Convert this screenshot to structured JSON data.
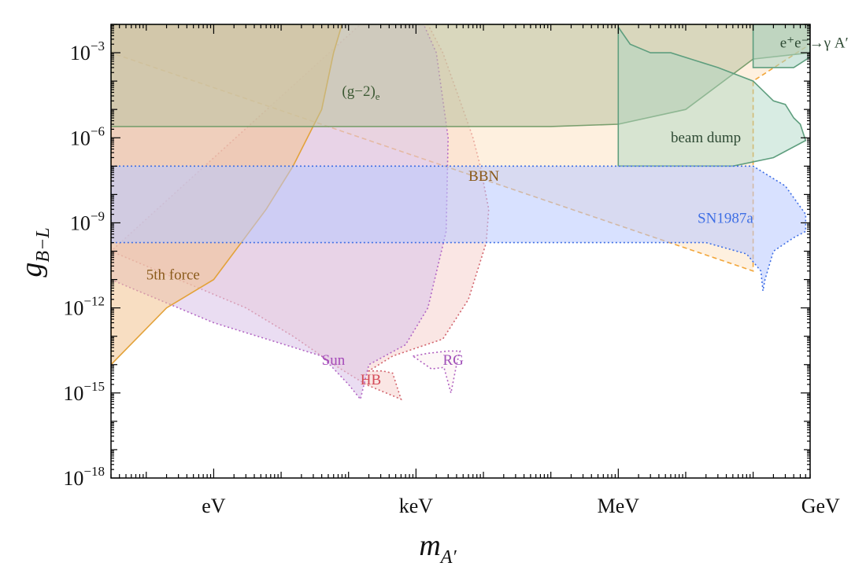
{
  "chart_data": {
    "type": "area",
    "title": "",
    "xlabel": "m",
    "xlabel_sub": "A′",
    "ylabel": "g",
    "ylabel_sub": "B−L",
    "x_scale": "log10",
    "y_scale": "log10",
    "x_unit": "eV",
    "xlim": [
      0.03,
      700000000
    ],
    "ylim": [
      1e-18,
      0.01
    ],
    "x_tick_labels": [
      {
        "value": 1,
        "label": "eV"
      },
      {
        "value": 1000,
        "label": "keV"
      },
      {
        "value": 1000000,
        "label": "MeV"
      },
      {
        "value": 1000000000,
        "label": "GeV"
      }
    ],
    "y_tick_labels": [
      {
        "exp": -3,
        "base": "10",
        "exp_text": "−3"
      },
      {
        "exp": -6,
        "base": "10",
        "exp_text": "−6"
      },
      {
        "exp": -9,
        "base": "10",
        "exp_text": "−9"
      },
      {
        "exp": -12,
        "base": "10",
        "exp_text": "−12"
      },
      {
        "exp": -15,
        "base": "10",
        "exp_text": "−15"
      },
      {
        "exp": -18,
        "base": "10",
        "exp_text": "−18"
      }
    ],
    "grid": false,
    "series": [
      {
        "name": "HB",
        "fill": "#f4c8c4",
        "stroke": "#d2636c",
        "line": "dotted",
        "opacity": 0.45,
        "label": {
          "text": "HB",
          "x": 150,
          "y": 2e-15,
          "color": "#d34a58"
        },
        "points": [
          [
            150,
            0.01
          ],
          [
            1500,
            0.01
          ],
          [
            2500,
            0.001
          ],
          [
            5000,
            1e-05
          ],
          [
            7000,
            1e-06
          ],
          [
            9000,
            1e-07
          ],
          [
            12000,
            3e-09
          ],
          [
            11000,
            2e-10
          ],
          [
            6000,
            2e-12
          ],
          [
            2500,
            8e-14
          ],
          [
            450,
            2e-14
          ],
          [
            200,
            6e-15
          ],
          [
            320,
            6e-15
          ],
          [
            450,
            5e-15
          ],
          [
            600,
            6e-16
          ],
          [
            180,
            2e-15
          ],
          [
            70,
            8e-15
          ],
          [
            15,
            1e-13
          ],
          [
            3,
            1e-12
          ],
          [
            0.03,
            1e-10
          ]
        ]
      },
      {
        "name": "RG",
        "fill": "#fbf0f0",
        "stroke": "#b060c0",
        "line": "dotted",
        "opacity": 0.5,
        "label": {
          "text": "RG",
          "x": 2500,
          "y": 1e-14,
          "color": "#a050b8"
        },
        "points": [
          [
            900,
            2e-14
          ],
          [
            1500,
            2.5e-14
          ],
          [
            3000,
            3e-14
          ],
          [
            4500,
            3e-14
          ],
          [
            4000,
            1e-14
          ],
          [
            3300,
            1e-15
          ],
          [
            2600,
            8e-15
          ],
          [
            1700,
            7e-15
          ]
        ]
      },
      {
        "name": "BBN",
        "fill": "#fde3c4",
        "stroke": "#f2a63a",
        "line": "dashed",
        "opacity": 0.55,
        "label": {
          "text": "BBN",
          "x": 6000,
          "y": 3e-08,
          "color": "#8a5a1a"
        },
        "points": [
          [
            0.03,
            0.01
          ],
          [
            700000000,
            0.01
          ],
          [
            700000000,
            0.002
          ],
          [
            100000000,
            0.0001
          ],
          [
            100000000,
            2e-11
          ],
          [
            0.03,
            0.001
          ]
        ]
      },
      {
        "name": "Sun",
        "fill": "#dcc6ea",
        "stroke": "#b266c4",
        "line": "dotted",
        "opacity": 0.6,
        "label": {
          "text": "Sun",
          "x": 40,
          "y": 1e-14,
          "color": "#a54ab9"
        },
        "points": [
          [
            0.03,
            1e-11
          ],
          [
            1,
            3e-13
          ],
          [
            40,
            2e-14
          ],
          [
            100,
            2e-15
          ],
          [
            150,
            6e-16
          ],
          [
            200,
            1e-14
          ],
          [
            700,
            5e-14
          ],
          [
            1500,
            1e-12
          ],
          [
            2800,
            5e-10
          ],
          [
            3000,
            1e-06
          ],
          [
            2000,
            0.001
          ],
          [
            1300,
            0.01
          ],
          [
            0.03,
            0.01
          ]
        ]
      },
      {
        "name": "5th force",
        "fill": "#f2c290",
        "stroke": "#e3a23a",
        "line": "solid",
        "opacity": 0.55,
        "label": {
          "text": "5th force",
          "x": 0.1,
          "y": 1e-11,
          "color": "#8a5a1a"
        },
        "points": [
          [
            0.03,
            0.01
          ],
          [
            80,
            0.01
          ],
          [
            60,
            0.001
          ],
          [
            40,
            1e-05
          ],
          [
            15,
            1e-07
          ],
          [
            6,
            3e-09
          ],
          [
            1,
            1e-11
          ],
          [
            0.2,
            1e-12
          ],
          [
            0.03,
            1e-14
          ]
        ]
      },
      {
        "name": "(g−2)e",
        "fill": "#b9c2a0",
        "stroke": "#7a9f6e",
        "line": "solid",
        "opacity": 0.55,
        "label": {
          "text": "(g−2)",
          "sub": "e",
          "x": 80,
          "y": 3e-05,
          "color": "#3d5a34"
        },
        "points": [
          [
            0.03,
            0.01
          ],
          [
            700000000,
            0.01
          ],
          [
            700000000,
            0.001
          ],
          [
            100000000,
            0.0006
          ],
          [
            10000000,
            1e-05
          ],
          [
            1000000,
            3e-06
          ],
          [
            100000,
            2.5e-06
          ],
          [
            0.03,
            2.5e-06
          ]
        ]
      },
      {
        "name": "beam dump",
        "fill": "#a9d4c2",
        "stroke": "#5e9e7e",
        "line": "solid",
        "opacity": 0.45,
        "label": {
          "text": "beam dump",
          "x": 6000000,
          "y": 7e-07,
          "color": "#2e4a34"
        },
        "points": [
          [
            1000000,
            0.008
          ],
          [
            1500000,
            0.002
          ],
          [
            3000000,
            0.001
          ],
          [
            6000000,
            0.001
          ],
          [
            30000000,
            0.0003
          ],
          [
            100000000,
            0.0001
          ],
          [
            200000000,
            2e-05
          ],
          [
            300000000,
            1.5e-05
          ],
          [
            400000000,
            5e-06
          ],
          [
            500000000,
            3e-06
          ],
          [
            600000000,
            8e-07
          ],
          [
            200000000,
            2e-07
          ],
          [
            50000000,
            1e-07
          ],
          [
            1000000,
            1e-07
          ]
        ]
      },
      {
        "name": "SN1987a",
        "fill": "#b8c8ff",
        "stroke": "#3f6fe5",
        "line": "dotted",
        "opacity": 0.55,
        "label": {
          "text": "SN1987a",
          "x": 15000000,
          "y": 1e-09,
          "color": "#3f6fe5"
        },
        "points": [
          [
            0.03,
            1e-07
          ],
          [
            100000000,
            1e-07
          ],
          [
            300000000,
            2e-08
          ],
          [
            600000000,
            2e-09
          ],
          [
            600000000,
            5e-10
          ],
          [
            400000000,
            3e-10
          ],
          [
            200000000,
            1e-10
          ],
          [
            150000000,
            1e-11
          ],
          [
            140000000,
            4e-12
          ],
          [
            130000000,
            2e-11
          ],
          [
            80000000,
            8e-11
          ],
          [
            20000000,
            2e-10
          ],
          [
            0.03,
            2e-10
          ]
        ]
      },
      {
        "name": "e+e− → γ A′",
        "fill": "#a9d4c2",
        "stroke": "#5e9e7e",
        "line": "solid",
        "opacity": 0.55,
        "label": {
          "text": "e⁺e⁻→γ A′",
          "x": 250000000,
          "y": 0.0015,
          "color": "#2e4a34"
        },
        "points": [
          [
            100000000,
            0.01
          ],
          [
            700000000,
            0.01
          ],
          [
            700000000,
            0.0007
          ],
          [
            400000000,
            0.0003
          ],
          [
            200000000,
            0.0003
          ],
          [
            100000000,
            0.0003
          ]
        ]
      }
    ]
  }
}
